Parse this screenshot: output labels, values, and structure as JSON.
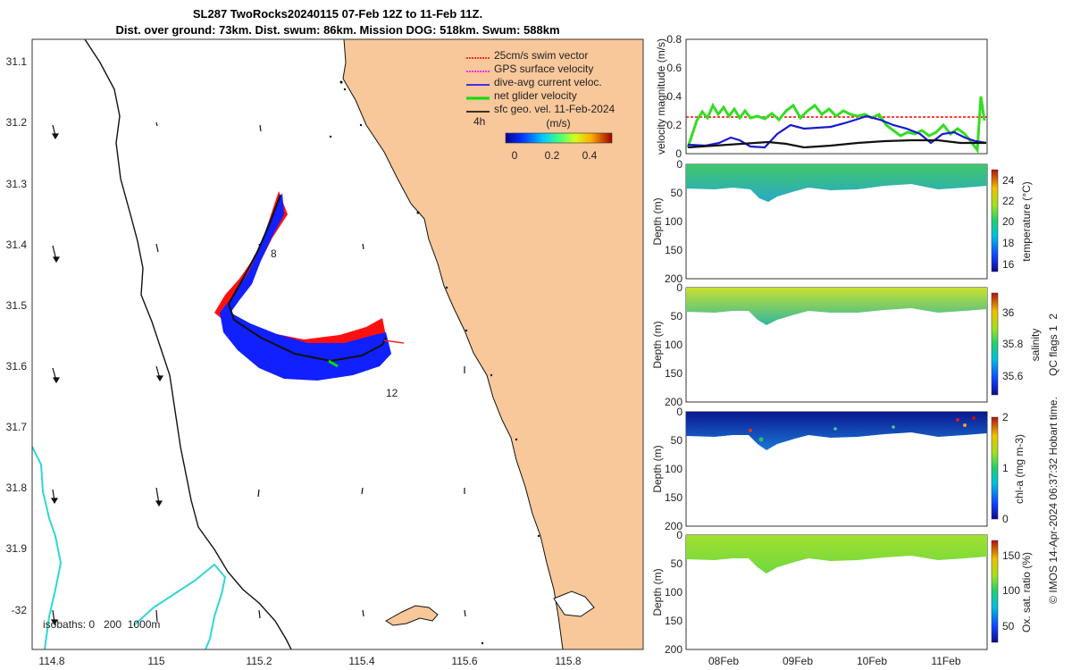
{
  "title": {
    "line1": "SL287 TwoRocks20240115 07-Feb 12Z to 11-Feb 11Z.",
    "line2": "Dist. over ground: 73km. Dist. swum: 86km. Mission DOG: 518km. Swum: 588km"
  },
  "map": {
    "lat_ticks": [
      "31.1",
      "31.2",
      "31.3",
      "31.4",
      "31.5",
      "31.6",
      "31.7",
      "31.8",
      "31.9",
      "-32"
    ],
    "lon_ticks": [
      "114.8",
      "115",
      "115.2",
      "115.4",
      "115.6",
      "115.8"
    ],
    "legend": [
      {
        "label": "25cm/s swim vector",
        "color": "#ff0000"
      },
      {
        "label": "GPS surface velocity",
        "color": "#ff00ff"
      },
      {
        "label": "dive-avg current veloc.",
        "color": "#0000ff"
      },
      {
        "label": "net glider velocity",
        "color": "#00dd00"
      },
      {
        "label": "sfc geo. vel. 11-Feb-2024",
        "color": "#000000"
      }
    ],
    "legend_bold_date": "11",
    "time_marker": "4h",
    "colorbar_unit": "(m/s)",
    "colorbar_ticks": [
      "0",
      "0.2",
      "0.4"
    ],
    "track_labels": [
      "8",
      "12"
    ],
    "isobaths_label": "isobaths: 0   200  1000m",
    "colors": {
      "land": "#f8c79a",
      "coast": "#111111",
      "isobath": "#2fd6d6"
    }
  },
  "velocity_panel": {
    "ylabel": "velocity magnitude (m/s)",
    "yticks": [
      "0",
      "0.2",
      "0.4",
      "0.6",
      "0.8"
    ],
    "ylim": [
      0,
      0.8
    ]
  },
  "profiles": [
    {
      "ylabel": "Depth (m)",
      "cblabel": "temperature (°C)",
      "cbticks": [
        "24",
        "22",
        "20",
        "18",
        "16"
      ],
      "depth_ticks": [
        "0",
        "50",
        "100",
        "150",
        "200"
      ]
    },
    {
      "ylabel": "Depth (m)",
      "cblabel": "salinity",
      "cbticks": [
        "36",
        "35.8",
        "35.6"
      ],
      "depth_ticks": [
        "0",
        "50",
        "100",
        "150",
        "200"
      ]
    },
    {
      "ylabel": "Depth (m)",
      "cblabel": "chl-a (mg m-3)",
      "cbticks": [
        "2",
        "1",
        "0"
      ],
      "depth_ticks": [
        "0",
        "50",
        "100",
        "150",
        "200"
      ]
    },
    {
      "ylabel": "Depth (m)",
      "cblabel": "Ox. sat. ratio (%)",
      "cbticks": [
        "150",
        "100",
        "50"
      ],
      "depth_ticks": [
        "0",
        "50",
        "100",
        "150",
        "200"
      ]
    }
  ],
  "time_ticks": [
    "08Feb",
    "09Feb",
    "10Feb",
    "11Feb"
  ],
  "side_note": "QC flags 1  2",
  "credit": "© IMOS 14-Apr-2024 06:37:32 Hobart time."
}
